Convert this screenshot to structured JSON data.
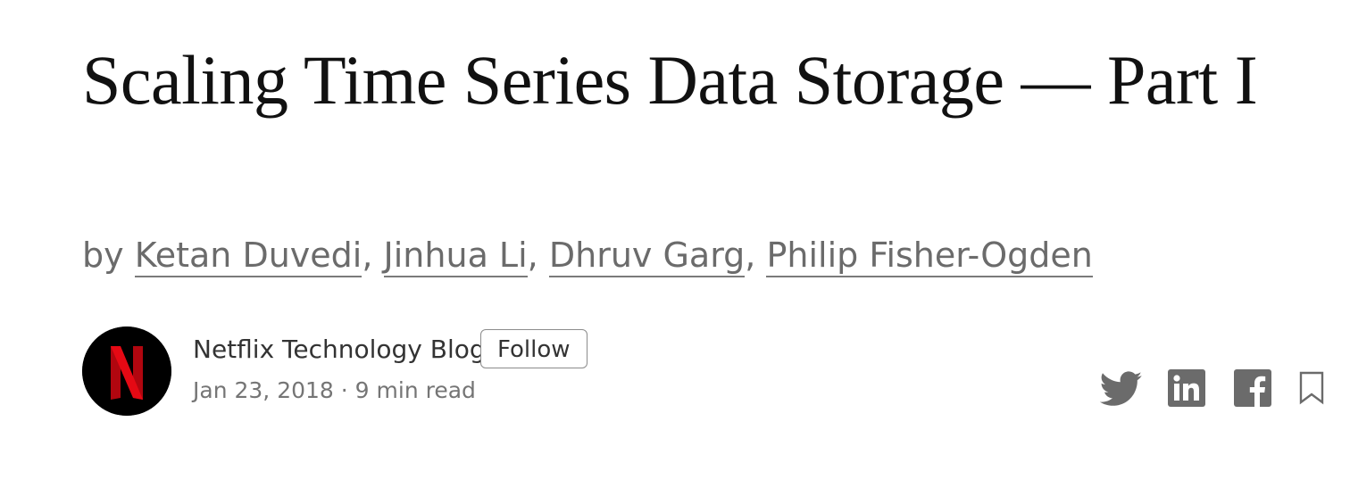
{
  "article": {
    "title": "Scaling Time Series Data Storage — Part I",
    "byline_prefix": "by",
    "authors": [
      "Ketan Duvedi",
      "Jinhua Li",
      "Dhruv Garg",
      "Philip Fisher-Ogden"
    ],
    "author_separator": ","
  },
  "publication": {
    "name": "Netflix Technology Blog",
    "follow_label": "Follow",
    "avatar_icon": "netflix-logo-icon",
    "avatar_bg": "#000000",
    "logo_color": "#d81f26"
  },
  "meta": {
    "date": "Jan 23, 2018",
    "dot": "·",
    "read_time": "9 min read"
  },
  "share_icons": [
    "twitter-icon",
    "linkedin-icon",
    "facebook-icon",
    "bookmark-icon"
  ],
  "colors": {
    "icon_gray": "#6b6b6b",
    "text_gray": "#6b6b6b"
  }
}
